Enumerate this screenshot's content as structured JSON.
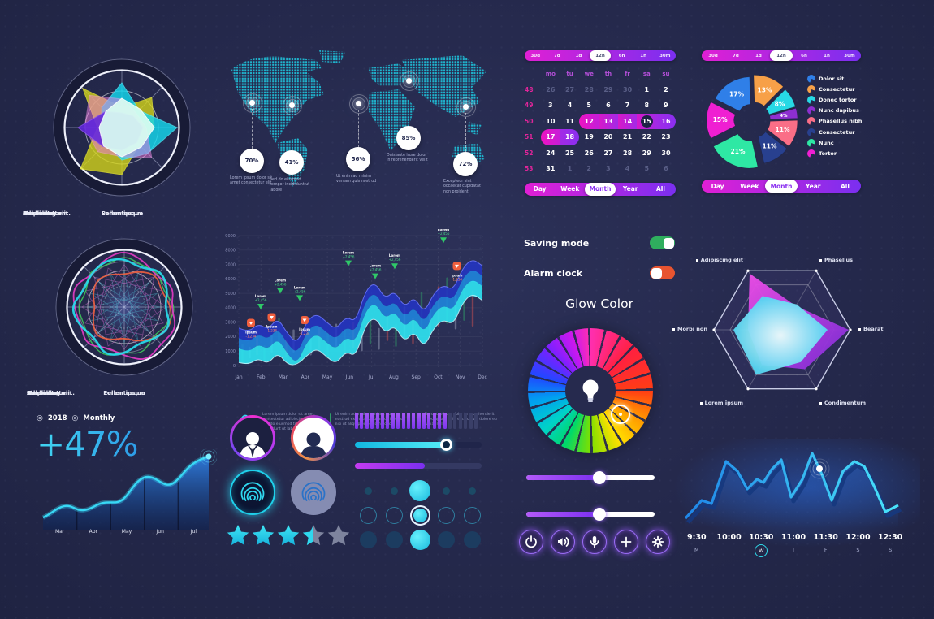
{
  "radar1": {
    "labels": [
      "Lorem ipsum",
      "Dolor sit",
      "Consectetur",
      "Adipiscing elit.",
      "Pellentesque",
      "Phasellus",
      "Morbi non",
      "Condimentum"
    ]
  },
  "radar2": {
    "labels": [
      "Lorem ipsum",
      "Dolor sit",
      "Consectetur",
      "Adipiscing elit.",
      "Pellentesque",
      "Phasellus",
      "Morbi non",
      "Condimentum"
    ]
  },
  "map": {
    "points": [
      {
        "pct": "70%",
        "caption": "Lorem ipsum dolor sit amet consectetur elit"
      },
      {
        "pct": "41%",
        "caption": "Sed do eiusmod tempor incididunt ut labore"
      },
      {
        "pct": "56%",
        "caption": "Ut enim ad minim veniam quis nostrud"
      },
      {
        "pct": "85%",
        "caption": "Duis aute irure dolor in reprehenderit velit"
      },
      {
        "pct": "72%",
        "caption": "Excepteur sint occaecat cupidatat non proident"
      }
    ]
  },
  "calendar": {
    "ranges": [
      "30d",
      "7d",
      "1d",
      "12h",
      "6h",
      "1h",
      "30m"
    ],
    "selected_range": "12h",
    "weekdays": [
      "mo",
      "tu",
      "we",
      "th",
      "fr",
      "sa",
      "su"
    ],
    "weeks": [
      {
        "num": "48",
        "days": [
          {
            "d": "26",
            "s": "m"
          },
          {
            "d": "27",
            "s": "m"
          },
          {
            "d": "28",
            "s": "m"
          },
          {
            "d": "29",
            "s": "m"
          },
          {
            "d": "30",
            "s": "m"
          },
          {
            "d": "1"
          },
          {
            "d": "2"
          }
        ]
      },
      {
        "num": "49",
        "days": [
          {
            "d": "3"
          },
          {
            "d": "4"
          },
          {
            "d": "5"
          },
          {
            "d": "6"
          },
          {
            "d": "7"
          },
          {
            "d": "8"
          },
          {
            "d": "9"
          }
        ]
      },
      {
        "num": "50",
        "days": [
          {
            "d": "10"
          },
          {
            "d": "11"
          },
          {
            "d": "12",
            "s": "selL"
          },
          {
            "d": "13",
            "s": "sel"
          },
          {
            "d": "14",
            "s": "sel"
          },
          {
            "d": "15",
            "s": "sel",
            "ring": true
          },
          {
            "d": "16",
            "s": "selR"
          }
        ]
      },
      {
        "num": "51",
        "days": [
          {
            "d": "17",
            "s": "selL"
          },
          {
            "d": "18",
            "s": "selR"
          },
          {
            "d": "19"
          },
          {
            "d": "20"
          },
          {
            "d": "21"
          },
          {
            "d": "22"
          },
          {
            "d": "23"
          }
        ]
      },
      {
        "num": "52",
        "days": [
          {
            "d": "24"
          },
          {
            "d": "25"
          },
          {
            "d": "26"
          },
          {
            "d": "27"
          },
          {
            "d": "28"
          },
          {
            "d": "29"
          },
          {
            "d": "30"
          }
        ]
      },
      {
        "num": "53",
        "days": [
          {
            "d": "31"
          },
          {
            "d": "1",
            "s": "m"
          },
          {
            "d": "2",
            "s": "m"
          },
          {
            "d": "3",
            "s": "m"
          },
          {
            "d": "4",
            "s": "m"
          },
          {
            "d": "5",
            "s": "m"
          },
          {
            "d": "6",
            "s": "m"
          }
        ]
      }
    ],
    "tabs": [
      "Day",
      "Week",
      "Month",
      "Year",
      "All"
    ],
    "active_tab": "Month"
  },
  "pie": {
    "ranges": [
      "30d",
      "7d",
      "1d",
      "12h",
      "6h",
      "1h",
      "30m"
    ],
    "selected_range": "12h",
    "slices": [
      {
        "label": "Dolor sit",
        "pct": 17,
        "color": "#2f7fe8"
      },
      {
        "label": "Consectetur",
        "pct": 13,
        "color": "#f7a048"
      },
      {
        "label": "Donec tortor",
        "pct": 8,
        "color": "#27d9e5"
      },
      {
        "label": "Nunc dapibus",
        "pct": 4,
        "color": "#8e2fd0"
      },
      {
        "label": "Phasellus nibh",
        "pct": 11,
        "color": "#fa6e87"
      },
      {
        "label": "Consectetur",
        "pct": 11,
        "color": "#28408f"
      },
      {
        "label": "Nunc",
        "pct": 21,
        "color": "#2ee8a4"
      },
      {
        "label": "Tortor",
        "pct": 15,
        "color": "#ef1fd2"
      }
    ],
    "tabs": [
      "Day",
      "Week",
      "Month",
      "Year",
      "All"
    ],
    "active_tab": "Month"
  },
  "main_chart": {
    "y_ticks": [
      "9000",
      "8000",
      "7000",
      "6000",
      "5000",
      "4000",
      "3000",
      "2000",
      "1000",
      "0"
    ],
    "months": [
      "Jan",
      "Feb",
      "Mar",
      "Apr",
      "May",
      "Jun",
      "Jul",
      "Aug",
      "Sep",
      "Oct",
      "Nov",
      "Dec"
    ],
    "wave_top": [
      2600,
      2300,
      2900,
      2500,
      3300,
      2200,
      1500,
      3100,
      3600,
      3000,
      2500,
      3400,
      3000,
      5200,
      5800,
      4600,
      5200,
      4000,
      4800,
      3600,
      5000,
      5600,
      5200,
      6800,
      7400,
      6900
    ],
    "candles": [
      [
        0.015,
        200,
        1500,
        "g"
      ],
      [
        0.045,
        500,
        1300,
        "n"
      ],
      [
        0.075,
        700,
        2500,
        "r"
      ],
      [
        0.105,
        300,
        1400,
        "g"
      ],
      [
        0.135,
        900,
        2100,
        "n"
      ],
      [
        0.165,
        1400,
        3300,
        "g"
      ],
      [
        0.195,
        600,
        1800,
        "r"
      ],
      [
        0.225,
        900,
        2500,
        "n"
      ],
      [
        0.26,
        300,
        1300,
        "g"
      ],
      [
        0.295,
        700,
        1900,
        "n"
      ],
      [
        0.33,
        1100,
        2700,
        "r"
      ],
      [
        0.365,
        500,
        2300,
        "g"
      ],
      [
        0.4,
        1300,
        2900,
        "n"
      ],
      [
        0.435,
        800,
        2500,
        "g"
      ],
      [
        0.47,
        1200,
        3000,
        "r"
      ],
      [
        0.505,
        1000,
        2400,
        "n"
      ],
      [
        0.54,
        1500,
        3300,
        "g"
      ],
      [
        0.575,
        1100,
        2600,
        "n"
      ],
      [
        0.61,
        1700,
        3500,
        "r"
      ],
      [
        0.645,
        1300,
        2900,
        "g"
      ],
      [
        0.68,
        1900,
        4100,
        "n"
      ],
      [
        0.715,
        1500,
        3300,
        "r"
      ],
      [
        0.75,
        2500,
        5100,
        "g"
      ],
      [
        0.785,
        2100,
        4300,
        "n"
      ],
      [
        0.82,
        2700,
        5500,
        "r"
      ],
      [
        0.855,
        2900,
        6100,
        "g"
      ],
      [
        0.89,
        2500,
        4900,
        "n"
      ],
      [
        0.925,
        3100,
        6300,
        "g"
      ],
      [
        0.96,
        2700,
        5200,
        "r"
      ]
    ],
    "markers_up": [
      [
        0.09,
        3600
      ],
      [
        0.17,
        4700
      ],
      [
        0.25,
        4200
      ],
      [
        0.45,
        6600
      ],
      [
        0.56,
        5700
      ],
      [
        0.64,
        6400
      ],
      [
        0.84,
        8200
      ]
    ],
    "markers_down": [
      [
        0.05,
        2950
      ],
      [
        0.135,
        3350
      ],
      [
        0.27,
        3150
      ],
      [
        0.895,
        6900
      ]
    ],
    "marker_up_label": "Lorem",
    "marker_up_value": "+2,456",
    "marker_down_label": "Ipsum",
    "marker_down_value": "-1,234",
    "legend": [
      {
        "icon": "wave",
        "text": "Lorem ipsum dolor sit amet, consectetur adipiscing elit, sed do eiusmod tempor incididunt ut labore."
      },
      {
        "icon": "bar-green",
        "text": "Ut enim ad minim veniam, quis nostrud exercitation ullamco laboris nisi ut aliquip ex ea commodo."
      },
      {
        "icon": "bar-orange",
        "text": "Duis aute irure dolor in reprehenderit in voluptate velit esse cillum dolore eu fugiat nulla."
      }
    ]
  },
  "controls": {
    "saving": {
      "label": "Saving mode",
      "on": true
    },
    "alarm": {
      "label": "Alarm clock",
      "on": false
    },
    "glow_title": "Glow Color"
  },
  "hex": {
    "labels": [
      "Adipiscing elit",
      "Phasellus",
      "Bearat",
      "Condimentum",
      "Lorem ipsum",
      "Morbi non"
    ]
  },
  "stat": {
    "bullet": "◎",
    "year": "2018",
    "mode": "Monthly",
    "value": "+47%",
    "months": [
      "Mar",
      "Apr",
      "May",
      "Jun",
      "Jul"
    ]
  },
  "widgets": {
    "rating": 3.5
  },
  "bottom_chart": {
    "times": [
      "9:30",
      "10:00",
      "10:30",
      "11:00",
      "11:30",
      "12:00",
      "12:30"
    ],
    "days": [
      "M",
      "T",
      "W",
      "T",
      "F",
      "S",
      "S"
    ],
    "active_day_index": 2
  },
  "chart_data": [
    {
      "type": "radar",
      "title": "octagon-radar-filled",
      "categories": [
        "Lorem ipsum",
        "Dolor sit",
        "Consectetur",
        "Adipiscing elit.",
        "Pellentesque",
        "Phasellus",
        "Morbi non",
        "Condimentum"
      ],
      "series": [
        {
          "name": "yellow",
          "values": [
            25,
            52,
            40,
            30,
            58,
            72,
            30,
            68
          ]
        },
        {
          "name": "cyan",
          "values": [
            55,
            30,
            68,
            45,
            40,
            28,
            25,
            35
          ]
        },
        {
          "name": "pink",
          "values": [
            35,
            25,
            30,
            52,
            36,
            42,
            46,
            56
          ]
        },
        {
          "name": "purple",
          "values": [
            18,
            20,
            26,
            26,
            28,
            33,
            54,
            28
          ]
        },
        {
          "name": "mint",
          "values": [
            36,
            32,
            40,
            34,
            36,
            32,
            28,
            28
          ]
        }
      ],
      "rmax": 77
    },
    {
      "type": "pie",
      "title": "category-share-donut",
      "labels": [
        "Dolor sit",
        "Consectetur",
        "Donec tortor",
        "Nunc dapibus",
        "Phasellus nibh",
        "Consectetur",
        "Nunc",
        "Tortor"
      ],
      "values": [
        17,
        13,
        8,
        4,
        11,
        11,
        21,
        15
      ]
    },
    {
      "type": "area",
      "title": "annual-flow",
      "ylim": [
        0,
        9000
      ],
      "x": [
        "Jan",
        "Feb",
        "Mar",
        "Apr",
        "May",
        "Jun",
        "Jul",
        "Aug",
        "Sep",
        "Oct",
        "Nov",
        "Dec"
      ],
      "series": [
        {
          "name": "flow-band-top",
          "values": [
            2600,
            2500,
            2200,
            3300,
            2900,
            5500,
            4700,
            4400,
            4800,
            5300,
            7100,
            6900
          ]
        }
      ]
    },
    {
      "type": "area",
      "title": "monthly-growth",
      "x": [
        "Mar",
        "Apr",
        "May",
        "Jun",
        "Jul"
      ],
      "values": [
        28,
        35,
        46,
        72,
        95
      ],
      "annotation": "+47%"
    },
    {
      "type": "line",
      "title": "intraday-week",
      "x": [
        "9:30",
        "10:00",
        "10:30",
        "11:00",
        "11:30",
        "12:00",
        "12:30"
      ],
      "values": [
        62,
        78,
        55,
        70,
        64,
        72,
        40
      ]
    }
  ]
}
